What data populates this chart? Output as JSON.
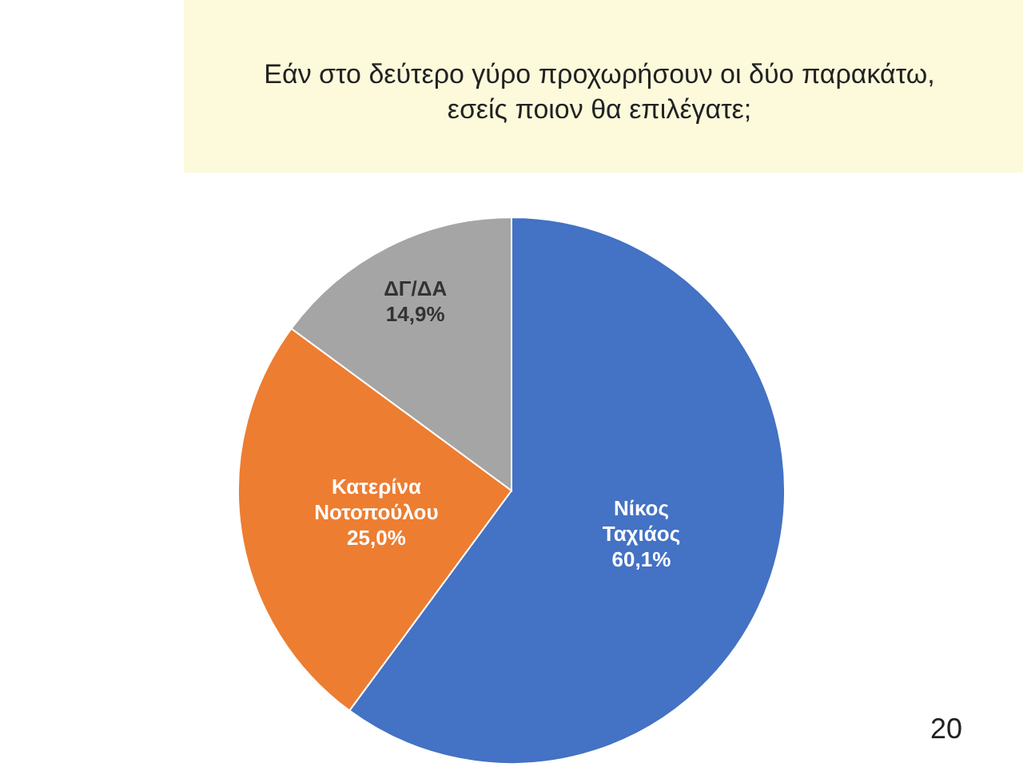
{
  "chart_data": {
    "type": "pie",
    "title": "Εάν στο δεύτερο γύρο προχωρήσουν οι δύο παρακάτω, εσείς ποιον θα επιλέγατε;",
    "categories": [
      "Νίκος Ταχιάος",
      "Κατερίνα Νοτοπούλου",
      "ΔΓ/ΔΑ"
    ],
    "values": [
      60.1,
      25.0,
      14.9
    ],
    "value_labels": [
      "60,1%",
      "25,0%",
      "14,9%"
    ],
    "colors": [
      "#4472c4",
      "#ed7d31",
      "#a5a5a5"
    ],
    "legend": false,
    "annotations": [
      "20"
    ]
  }
}
